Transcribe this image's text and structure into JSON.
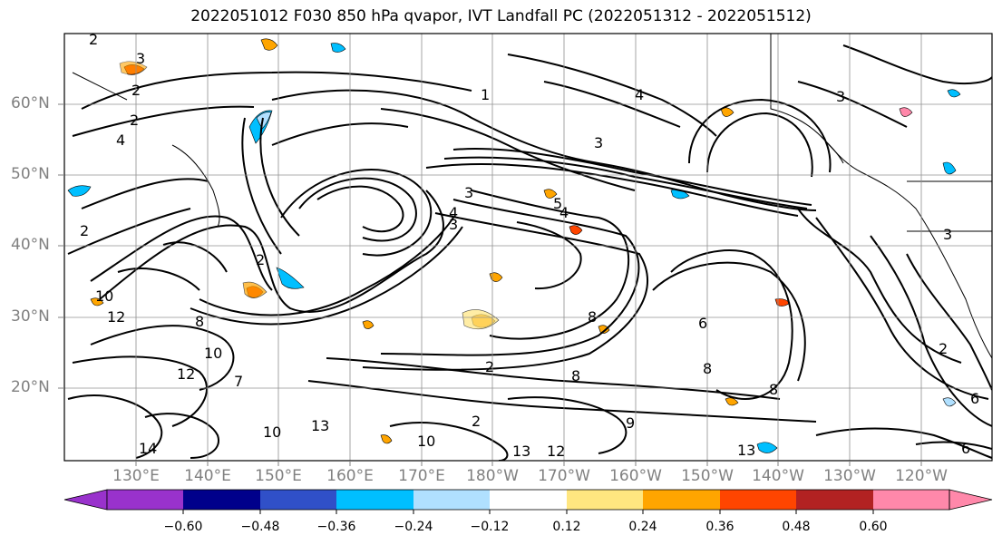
{
  "title": "2022051012 F030 850 hPa qvapor, IVT Landfall PC (2022051312 - 2022051512)",
  "latitude_labels": [
    "60°N",
    "50°N",
    "40°N",
    "30°N",
    "20°N"
  ],
  "longitude_labels": [
    "130°E",
    "140°E",
    "150°E",
    "160°E",
    "170°E",
    "180°W",
    "170°W",
    "160°W",
    "150°W",
    "140°W",
    "130°W",
    "120°W"
  ],
  "colorbar": {
    "tick_labels": [
      "−0.60",
      "−0.48",
      "−0.36",
      "−0.24",
      "−0.12",
      "0.12",
      "0.24",
      "0.36",
      "0.48",
      "0.60"
    ],
    "colors": [
      "#9932cc",
      "#00008b",
      "#3050c8",
      "#00bfff",
      "#b0e0ff",
      "#ffffff",
      "#ffe680",
      "#ffa500",
      "#ff4500",
      "#b22222",
      "#ff88aa"
    ]
  },
  "contour_labels": [
    "2",
    "3",
    "2",
    "2",
    "4",
    "1",
    "3",
    "3",
    "2",
    "3",
    "3",
    "5",
    "4",
    "4",
    "2",
    "2",
    "3",
    "10",
    "12",
    "8",
    "8",
    "7",
    "10",
    "12",
    "2",
    "10",
    "8",
    "6",
    "8",
    "8",
    "13",
    "13",
    "14",
    "13",
    "12",
    "9",
    "10",
    "2",
    "6",
    "4",
    "6"
  ],
  "colors": {
    "ocean": "#ffffff",
    "contour": "#000000",
    "grid": "#909090"
  }
}
